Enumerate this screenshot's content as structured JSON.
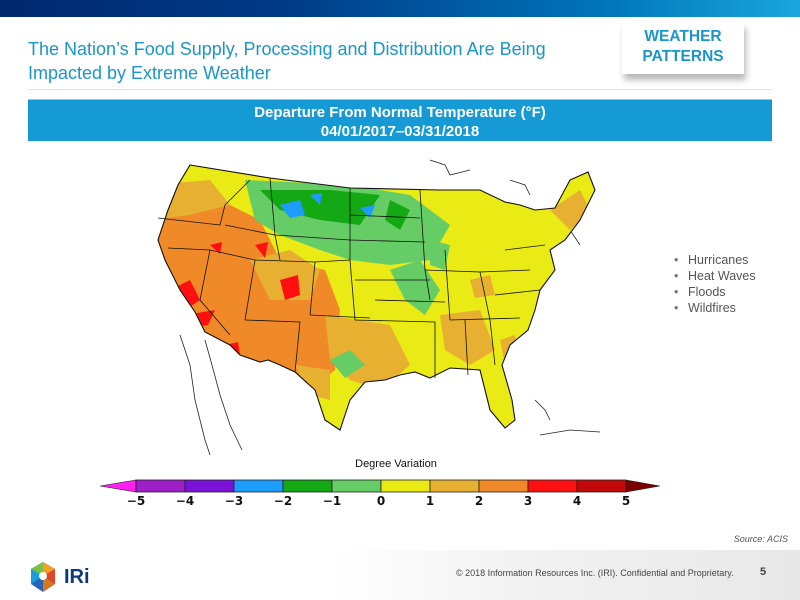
{
  "header": {
    "title": "The Nation’s Food Supply, Processing and Distribution Are Being Impacted by Extreme Weather",
    "tag_line1": "WEATHER",
    "tag_line2": "PATTERNS"
  },
  "banner": {
    "line1": "Departure From Normal Temperature (°F)",
    "line2": "04/01/2017–03/31/2018"
  },
  "bullets": [
    "Hurricanes",
    "Heat Waves",
    "Floods",
    "Wildfires"
  ],
  "map": {
    "icon": "us-temperature-anomaly-map"
  },
  "legend": {
    "title": "Degree Variation",
    "ticks": [
      "−5",
      "−4",
      "−3",
      "−2",
      "−1",
      "0",
      "1",
      "2",
      "3",
      "4",
      "5"
    ],
    "low_arrow_color": "#ff1ff0",
    "high_arrow_color": "#7a0000",
    "segment_colors": [
      "#9e1fc8",
      "#7a12d8",
      "#1c9cff",
      "#14a814",
      "#66cc66",
      "#eaea14",
      "#e8b030",
      "#f08a28",
      "#ff1010",
      "#c00808"
    ]
  },
  "footer": {
    "source": "Source: ACIS",
    "copyright": "© 2018 Information Resources Inc. (IRI). Confidential and Proprietary.",
    "page": "5",
    "logo_text": "IRi"
  },
  "colors": {
    "accent": "#159ad6",
    "title_blue": "#1a96c8",
    "navy": "#00286e"
  }
}
